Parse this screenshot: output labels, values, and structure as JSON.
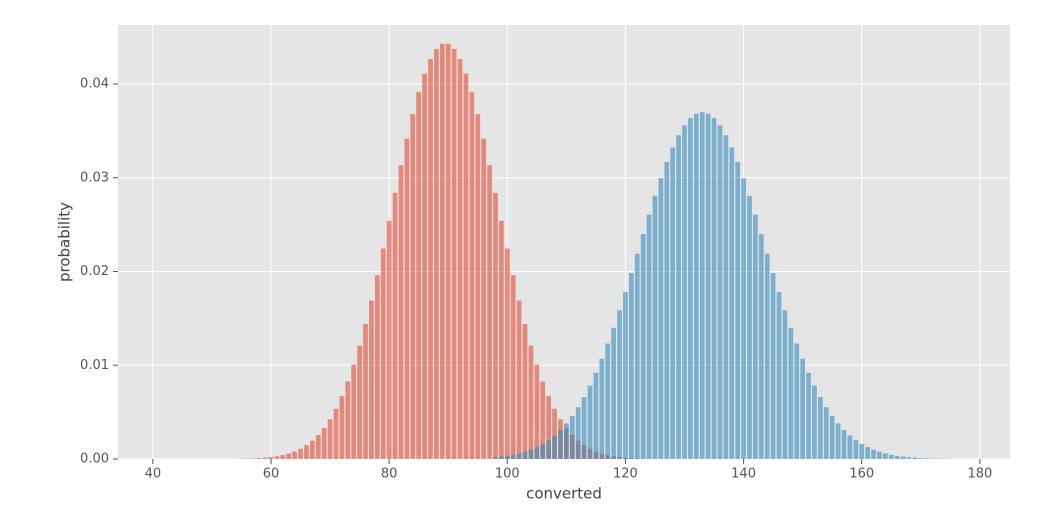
{
  "chart_data": {
    "type": "bar",
    "xlabel": "converted",
    "ylabel": "probability",
    "xlim": [
      34.1,
      185.1
    ],
    "ylim": [
      0,
      0.0463
    ],
    "xticks": [
      40,
      60,
      80,
      100,
      120,
      140,
      160,
      180
    ],
    "yticks": [
      {
        "value": 0,
        "label": "0.00"
      },
      0.01,
      0.02,
      0.03,
      0.04
    ],
    "grid": true,
    "alpha": 0.6,
    "series": [
      {
        "color": "#E24A33",
        "x": [
          55,
          56,
          57,
          58,
          59,
          60,
          61,
          62,
          63,
          64,
          65,
          66,
          67,
          68,
          69,
          70,
          71,
          72,
          73,
          74,
          75,
          76,
          77,
          78,
          79,
          80,
          81,
          82,
          83,
          84,
          85,
          86,
          87,
          88,
          89,
          90,
          91,
          92,
          93,
          94,
          95,
          96,
          97,
          98,
          99,
          100,
          101,
          102,
          103,
          104,
          105,
          106,
          107,
          108,
          109,
          110,
          111,
          112,
          113,
          114,
          115,
          116,
          117,
          118,
          119,
          120,
          121,
          122,
          123,
          124
        ],
        "values": [
          3e-05,
          4e-05,
          7e-05,
          0.0001,
          0.00014,
          0.00021,
          0.00029,
          0.00042,
          0.00058,
          0.0008,
          0.00109,
          0.00147,
          0.00195,
          0.00256,
          0.00331,
          0.00424,
          0.00536,
          0.0067,
          0.00826,
          0.01006,
          0.01211,
          0.0144,
          0.01691,
          0.0196,
          0.02245,
          0.02541,
          0.02839,
          0.03134,
          0.03417,
          0.0368,
          0.03914,
          0.04112,
          0.04267,
          0.04374,
          0.0443,
          0.0443,
          0.04374,
          0.04267,
          0.04112,
          0.03914,
          0.0368,
          0.03417,
          0.03134,
          0.02839,
          0.02541,
          0.02245,
          0.0196,
          0.01691,
          0.0144,
          0.01211,
          0.01006,
          0.00826,
          0.0067,
          0.00536,
          0.00424,
          0.00331,
          0.00256,
          0.00195,
          0.00147,
          0.00109,
          0.0008,
          0.00058,
          0.00042,
          0.00029,
          0.00021,
          0.00014,
          0.0001,
          7e-05,
          4e-05,
          3e-05
        ]
      },
      {
        "color": "#348ABD",
        "x": [
          98,
          99,
          100,
          101,
          102,
          103,
          104,
          105,
          106,
          107,
          108,
          109,
          110,
          111,
          112,
          113,
          114,
          115,
          116,
          117,
          118,
          119,
          120,
          121,
          122,
          123,
          124,
          125,
          126,
          127,
          128,
          129,
          130,
          131,
          132,
          133,
          134,
          135,
          136,
          137,
          138,
          139,
          140,
          141,
          142,
          143,
          144,
          145,
          146,
          147,
          148,
          149,
          150,
          151,
          152,
          153,
          154,
          155,
          156,
          157,
          158,
          159,
          160,
          161,
          162,
          163,
          164,
          165,
          166,
          167,
          168,
          169,
          170,
          171,
          172,
          173,
          174,
          175
        ],
        "values": [
          0.00019,
          0.00026,
          0.00034,
          0.00045,
          0.00059,
          0.00077,
          0.00099,
          0.00127,
          0.0016,
          0.00201,
          0.0025,
          0.00309,
          0.00379,
          0.00459,
          0.00553,
          0.00661,
          0.00784,
          0.00919,
          0.01069,
          0.01232,
          0.014,
          0.01586,
          0.01781,
          0.01984,
          0.0219,
          0.024,
          0.02607,
          0.02808,
          0.02996,
          0.03169,
          0.03323,
          0.03454,
          0.0356,
          0.03637,
          0.03684,
          0.037,
          0.03684,
          0.03637,
          0.0356,
          0.03454,
          0.03323,
          0.03169,
          0.02996,
          0.02808,
          0.02607,
          0.024,
          0.0219,
          0.01984,
          0.01781,
          0.01586,
          0.014,
          0.01232,
          0.01069,
          0.00919,
          0.00784,
          0.00661,
          0.00553,
          0.00459,
          0.00379,
          0.00309,
          0.0025,
          0.00201,
          0.0016,
          0.00127,
          0.00099,
          0.00077,
          0.00059,
          0.00045,
          0.00034,
          0.00026,
          0.00019,
          0.00014,
          0.0001,
          7e-05,
          5e-05,
          4e-05,
          3e-05,
          2e-05
        ]
      }
    ]
  }
}
